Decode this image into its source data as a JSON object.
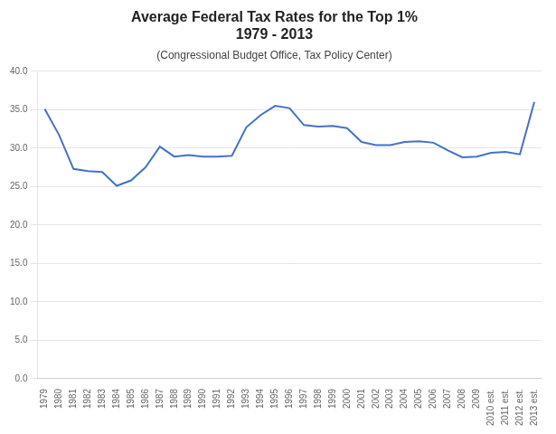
{
  "chart_data": {
    "type": "line",
    "title": "Average Federal Tax Rates for the Top 1%\n1979 - 2013",
    "subtitle": "(Congressional Budget Office, Tax Policy Center)",
    "categories": [
      "1979",
      "1980",
      "1981",
      "1982",
      "1983",
      "1984",
      "1985",
      "1986",
      "1987",
      "1988",
      "1989",
      "1990",
      "1991",
      "1992",
      "1993",
      "1994",
      "1995",
      "1996",
      "1997",
      "1998",
      "1999",
      "2000",
      "2001",
      "2002",
      "2003",
      "2004",
      "2005",
      "2006",
      "2007",
      "2008",
      "2009",
      "2010 est.",
      "2011 est.",
      "2012 est.",
      "2013 est."
    ],
    "values": [
      35.1,
      31.7,
      27.3,
      27.0,
      26.9,
      25.1,
      25.8,
      27.5,
      30.2,
      28.9,
      29.1,
      28.9,
      28.9,
      29.0,
      32.7,
      34.3,
      35.5,
      35.2,
      33.0,
      32.8,
      32.9,
      32.6,
      30.8,
      30.4,
      30.4,
      30.8,
      30.9,
      30.7,
      29.7,
      28.8,
      28.9,
      29.4,
      29.5,
      29.2,
      36.0
    ],
    "color": "#4472C4",
    "ylim": [
      0.0,
      40.0
    ],
    "yticks": [
      {
        "value": 0,
        "label": "0.0"
      },
      {
        "value": 5,
        "label": "5.0"
      },
      {
        "value": 10,
        "label": "10.0"
      },
      {
        "value": 15,
        "label": "15.0"
      },
      {
        "value": 20,
        "label": "20.0"
      },
      {
        "value": 25,
        "label": "25.0"
      },
      {
        "value": 30,
        "label": "30.0"
      },
      {
        "value": 35,
        "label": "35.0"
      },
      {
        "value": 40,
        "label": "40.0"
      }
    ],
    "grid": true
  }
}
